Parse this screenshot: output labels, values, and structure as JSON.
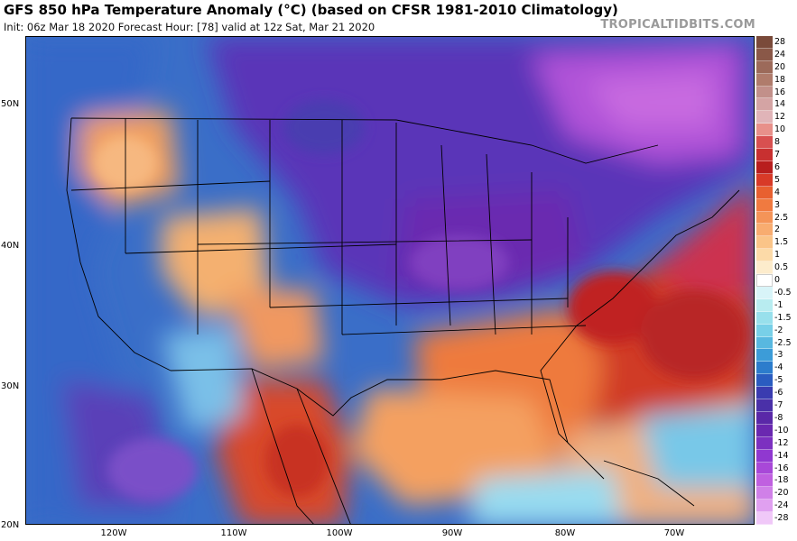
{
  "header": {
    "title": "GFS 850 hPa Temperature Anomaly (°C) (based on CFSR 1981-2010 Climatology)",
    "subtitle": "Init: 06z Mar 18 2020   Forecast Hour: [78]   valid at 12z Sat, Mar 21 2020",
    "brand": "TROPICALTIDBITS.COM"
  },
  "map": {
    "lat_labels": [
      "50N",
      "40N",
      "30N",
      "20N"
    ],
    "lon_labels": [
      "120W",
      "110W",
      "100W",
      "90W",
      "80W",
      "70W"
    ]
  },
  "colorbar": {
    "labels": [
      "28",
      "24",
      "20",
      "18",
      "16",
      "14",
      "12",
      "10",
      "8",
      "7",
      "6",
      "5",
      "4",
      "3",
      "2.5",
      "2",
      "1.5",
      "1",
      "0.5",
      "0",
      "-0.5",
      "-1",
      "-1.5",
      "-2",
      "-2.5",
      "-3",
      "-4",
      "-5",
      "-6",
      "-7",
      "-8",
      "-10",
      "-12",
      "-14",
      "-16",
      "-18",
      "-20",
      "-24",
      "-28"
    ],
    "colors": [
      "#7a4a3a",
      "#8a5848",
      "#9c6a5a",
      "#b07c6c",
      "#c2908a",
      "#d4a4a4",
      "#e0b4b8",
      "#e8908a",
      "#d85050",
      "#c83030",
      "#b81e1e",
      "#d83a28",
      "#e86030",
      "#f07a40",
      "#f49458",
      "#f8ac70",
      "#fac488",
      "#fcdaa8",
      "#fdeccc",
      "#ffffff",
      "#d8f4f8",
      "#b8ecf0",
      "#98e0ec",
      "#78d0e8",
      "#58b8e0",
      "#3c9cd8",
      "#2c7ccc",
      "#2a5cc0",
      "#3a3cb0",
      "#4a30a8",
      "#5a28a8",
      "#6a28b0",
      "#7c30c0",
      "#9038d0",
      "#a848d8",
      "#c060e0",
      "#d080e8",
      "#e0a0f0",
      "#f0c8f8"
    ]
  }
}
